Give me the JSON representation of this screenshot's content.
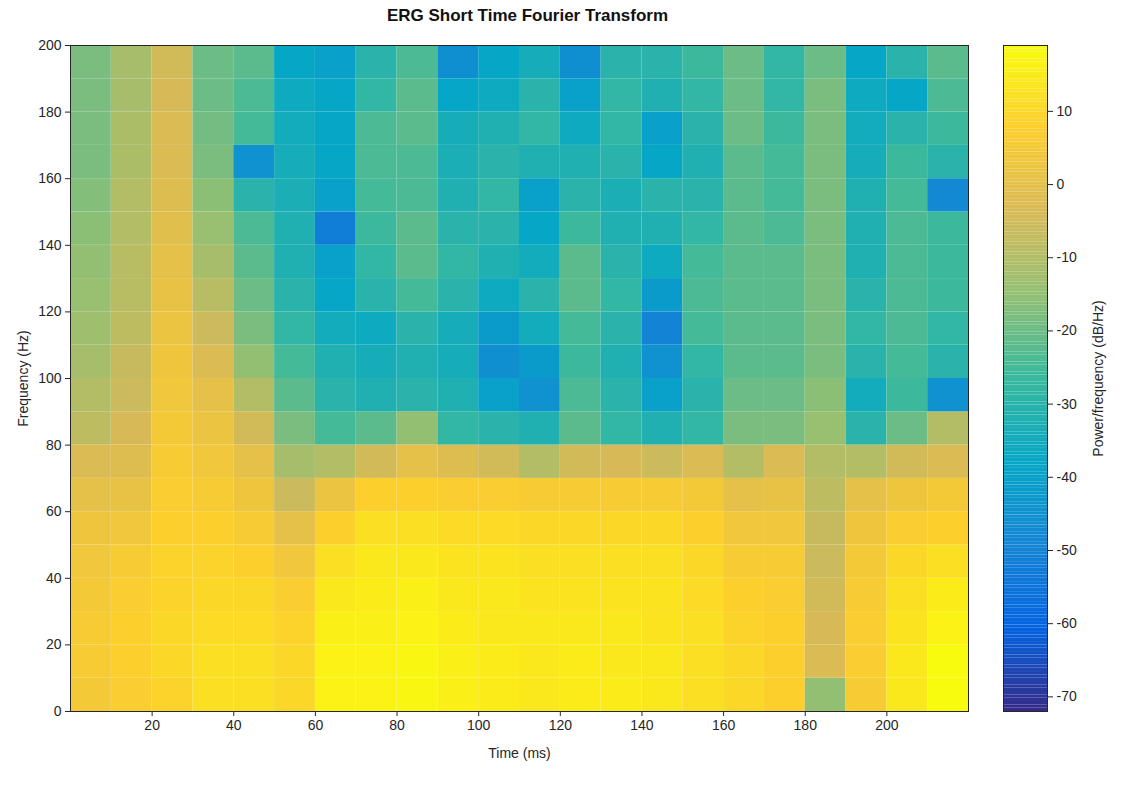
{
  "chart_data": {
    "type": "heatmap",
    "title": "ERG Short Time Fourier Transform",
    "x_label": "Time (ms)",
    "y_label": "Frequency (Hz)",
    "xlim": [
      0,
      220
    ],
    "ylim": [
      0,
      200
    ],
    "xticks": [
      20,
      40,
      60,
      80,
      100,
      120,
      140,
      160,
      180,
      200
    ],
    "yticks": [
      0,
      20,
      40,
      60,
      80,
      100,
      120,
      140,
      160,
      180,
      200
    ],
    "x": [
      5,
      15,
      25,
      35,
      45,
      55,
      65,
      75,
      85,
      95,
      105,
      115,
      125,
      135,
      145,
      155,
      165,
      175,
      185,
      195,
      205,
      215
    ],
    "y": [
      5,
      15,
      25,
      35,
      45,
      55,
      65,
      75,
      85,
      95,
      105,
      115,
      125,
      135,
      145,
      155,
      165,
      175,
      185,
      195
    ],
    "z": [
      [
        5,
        6,
        6,
        5,
        4,
        3,
        0,
        -3,
        -8,
        -10,
        -12,
        -13,
        -14,
        -15,
        -16,
        -17,
        -18,
        -18,
        -18,
        -18
      ],
      [
        7,
        8,
        8,
        7,
        6,
        4,
        1,
        -2,
        -4,
        -6,
        -7,
        -8,
        -9,
        -9,
        -10,
        -10,
        -11,
        -11,
        -12,
        -12
      ],
      [
        9,
        10,
        10,
        9,
        9,
        8,
        7,
        6,
        5,
        4,
        3,
        2,
        1,
        0,
        -1,
        -2,
        -3,
        -3,
        -4,
        -5
      ],
      [
        12,
        12,
        11,
        10,
        9,
        8,
        6,
        4,
        2,
        0,
        -3,
        -6,
        -9,
        -12,
        -14,
        -16,
        -18,
        -19,
        -20,
        -20
      ],
      [
        12,
        12,
        11,
        10,
        8,
        6,
        3,
        0,
        -5,
        -10,
        -15,
        -18,
        -20,
        -22,
        -24,
        -30,
        -45,
        -25,
        -24,
        -22
      ],
      [
        10,
        10,
        9,
        7,
        4,
        0,
        -6,
        -12,
        -18,
        -22,
        -25,
        -28,
        -30,
        -32,
        -32,
        -33,
        -34,
        -35,
        -36,
        -38
      ],
      [
        17,
        17,
        16,
        14,
        12,
        8,
        2,
        -10,
        -25,
        -30,
        -32,
        -35,
        -38,
        -40,
        -52,
        -40,
        -38,
        -38,
        -38,
        -40
      ],
      [
        17,
        17,
        16,
        15,
        14,
        12,
        8,
        -5,
        -22,
        -32,
        -34,
        -36,
        -30,
        -28,
        -26,
        -25,
        -24,
        -24,
        -28,
        -30
      ],
      [
        18,
        18,
        17,
        16,
        14,
        12,
        8,
        0,
        -15,
        -30,
        -32,
        -30,
        -25,
        -22,
        -22,
        -24,
        -24,
        -22,
        -22,
        -24
      ],
      [
        16,
        16,
        15,
        14,
        13,
        11,
        7,
        -2,
        -28,
        -32,
        -34,
        -34,
        -30,
        -28,
        -30,
        -32,
        -33,
        -34,
        -38,
        -46
      ],
      [
        15,
        15,
        14,
        14,
        13,
        11,
        7,
        -5,
        -30,
        -40,
        -46,
        -42,
        -36,
        -32,
        -30,
        -28,
        -30,
        -32,
        -36,
        -38
      ],
      [
        14,
        14,
        14,
        13,
        12,
        10,
        6,
        -10,
        -32,
        -45,
        -42,
        -35,
        -30,
        -35,
        -38,
        -40,
        -32,
        -28,
        -30,
        -34
      ],
      [
        15,
        15,
        14,
        13,
        12,
        10,
        6,
        -5,
        -22,
        -24,
        -26,
        -25,
        -22,
        -22,
        -26,
        -30,
        -32,
        -36,
        -40,
        -46
      ],
      [
        15,
        14,
        14,
        13,
        12,
        10,
        6,
        -4,
        -28,
        -30,
        -32,
        -30,
        -28,
        -30,
        -32,
        -33,
        -30,
        -28,
        -28,
        -30
      ],
      [
        14,
        14,
        13,
        13,
        12,
        10,
        6,
        -6,
        -32,
        -40,
        -45,
        -50,
        -42,
        -36,
        -32,
        -30,
        -38,
        -40,
        -32,
        -30
      ],
      [
        12,
        12,
        12,
        11,
        10,
        8,
        5,
        -3,
        -28,
        -30,
        -28,
        -25,
        -24,
        -25,
        -28,
        -30,
        -32,
        -30,
        -28,
        -26
      ],
      [
        10,
        10,
        9,
        8,
        6,
        4,
        0,
        -10,
        -18,
        -20,
        -22,
        -22,
        -22,
        -22,
        -22,
        -22,
        -22,
        -20,
        -20,
        -20
      ],
      [
        8,
        8,
        8,
        7,
        6,
        4,
        1,
        -3,
        -18,
        -20,
        -22,
        -22,
        -22,
        -22,
        -24,
        -25,
        -25,
        -26,
        -28,
        -28
      ],
      [
        -15,
        -3,
        -4,
        -5,
        -6,
        -7,
        -8,
        -10,
        -14,
        -16,
        -18,
        -18,
        -18,
        -18,
        -18,
        -18,
        -18,
        -18,
        -18,
        -20
      ],
      [
        6,
        7,
        7,
        6,
        5,
        3,
        0,
        -10,
        -30,
        -35,
        -30,
        -28,
        -30,
        -32,
        -32,
        -32,
        -34,
        -35,
        -36,
        -38
      ],
      [
        14,
        14,
        13,
        12,
        10,
        7,
        3,
        -5,
        -20,
        -26,
        -25,
        -24,
        -24,
        -24,
        -24,
        -25,
        -26,
        -30,
        -38,
        -30
      ],
      [
        19,
        19,
        17,
        15,
        12,
        8,
        5,
        -3,
        -10,
        -45,
        -30,
        -28,
        -26,
        -26,
        -26,
        -48,
        -30,
        -26,
        -24,
        -22
      ]
    ],
    "colorbar_label": "Power/frequency (dB/Hz)",
    "colorbar_range": [
      -72,
      19
    ],
    "colorbar_ticks": [
      -70,
      -60,
      -50,
      -40,
      -30,
      -20,
      -10,
      0,
      10
    ]
  }
}
